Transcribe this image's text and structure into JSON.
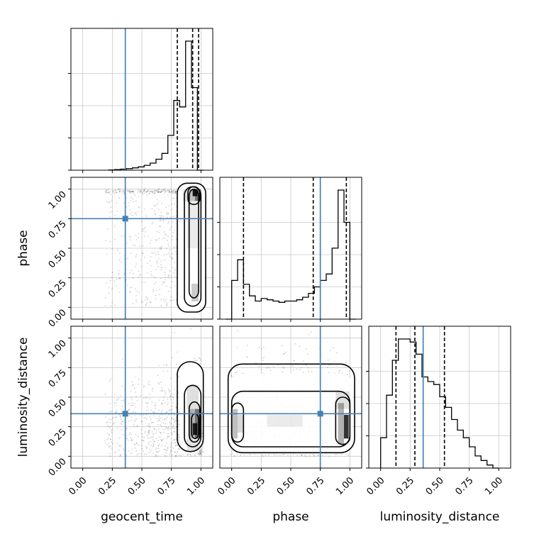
{
  "chart_data": {
    "type": "corner",
    "parameters": [
      "geocent_time",
      "phase",
      "luminosity_distance"
    ],
    "tick_labels": [
      "0.00",
      "0.25",
      "0.50",
      "0.75",
      "1.00"
    ],
    "ticks": [
      0.0,
      0.25,
      0.5,
      0.75,
      1.0
    ],
    "axis_range": [
      -0.1,
      1.1
    ],
    "truths": {
      "geocent_time": 0.36,
      "phase": 0.75,
      "luminosity_distance": 0.36
    },
    "truth_color": "#4682b4",
    "grid": true,
    "marginals": [
      {
        "parameter": "geocent_time",
        "bin_edges": [
          0.22,
          0.27,
          0.32,
          0.37,
          0.42,
          0.47,
          0.52,
          0.57,
          0.62,
          0.67,
          0.72,
          0.77,
          0.82,
          0.87,
          0.92,
          0.97,
          1.02
        ],
        "counts": [
          0.2,
          0.5,
          0.8,
          1.2,
          1.8,
          2.6,
          3.8,
          5.5,
          8.5,
          13,
          27,
          54,
          49,
          100,
          64,
          0
        ],
        "quantile_lines": [
          0.8,
          0.93,
          0.98
        ]
      },
      {
        "parameter": "phase",
        "bin_edges": [
          -0.05,
          0.0,
          0.05,
          0.1,
          0.15,
          0.2,
          0.25,
          0.3,
          0.35,
          0.4,
          0.45,
          0.5,
          0.55,
          0.6,
          0.65,
          0.7,
          0.75,
          0.8,
          0.85,
          0.9,
          0.95,
          1.0,
          1.05
        ],
        "counts": [
          0,
          30,
          46,
          27,
          18,
          14,
          16,
          15,
          14,
          13,
          14,
          14,
          15,
          17,
          20,
          25,
          30,
          35,
          55,
          100,
          75,
          0
        ],
        "quantile_lines": [
          0.1,
          0.69,
          0.97
        ]
      },
      {
        "parameter": "luminosity_distance",
        "bin_edges": [
          0.0,
          0.05,
          0.1,
          0.15,
          0.2,
          0.25,
          0.3,
          0.35,
          0.4,
          0.45,
          0.5,
          0.55,
          0.6,
          0.65,
          0.7,
          0.75,
          0.8,
          0.85,
          0.9,
          0.95,
          1.0
        ],
        "counts": [
          20,
          48,
          71,
          85,
          85,
          83,
          75,
          60,
          57,
          55,
          47,
          40,
          32,
          25,
          20,
          14,
          8,
          5,
          2,
          0
        ],
        "quantile_lines": [
          0.13,
          0.29,
          0.54
        ]
      }
    ],
    "joint_2d": [
      {
        "x": "geocent_time",
        "y": "phase",
        "density_peak": [
          0.95,
          0.97
        ],
        "type": "contour+scatter"
      },
      {
        "x": "geocent_time",
        "y": "luminosity_distance",
        "density_peak": [
          0.95,
          0.25
        ],
        "type": "contour+scatter"
      },
      {
        "x": "phase",
        "y": "luminosity_distance",
        "density_peak": [
          0.95,
          0.2
        ],
        "type": "contour+scatter"
      }
    ]
  }
}
